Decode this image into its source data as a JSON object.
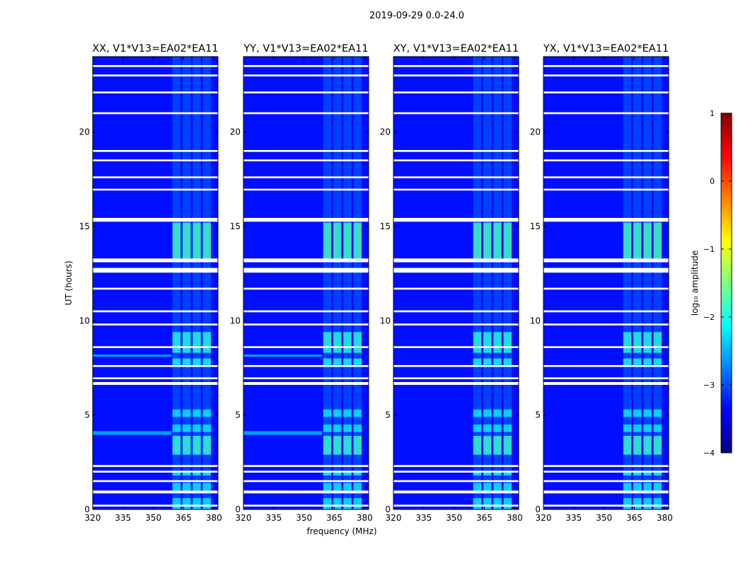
{
  "figure": {
    "suptitle": "2019-09-29 0.0-24.0",
    "xlabel": "frequency (MHz)",
    "ylabel": "UT (hours)"
  },
  "chart_data": {
    "type": "heatmap",
    "x": {
      "label": "frequency (MHz)",
      "range": [
        320,
        382
      ],
      "ticks": [
        320,
        335,
        350,
        365,
        380
      ]
    },
    "y": {
      "label": "UT (hours)",
      "range": [
        0,
        24
      ],
      "ticks": [
        0,
        5,
        10,
        15,
        20
      ]
    },
    "panels": [
      {
        "title": "XX, V1*V13=EA02*EA11",
        "show_ylabel": true
      },
      {
        "title": "YY, V1*V13=EA02*EA11",
        "show_ylabel": false
      },
      {
        "title": "XY, V1*V13=EA02*EA11",
        "show_ylabel": false
      },
      {
        "title": "YX, V1*V13=EA02*EA11",
        "show_ylabel": false
      }
    ],
    "background_log10_amplitude": -3.3,
    "bright_channels_MHz": [
      [
        359.5,
        363.5
      ],
      [
        364.5,
        368.5
      ],
      [
        369.5,
        373.5
      ],
      [
        374.5,
        378.5
      ]
    ],
    "bright_hours_log10_amplitude": [
      {
        "start": 0.0,
        "end": 0.6,
        "value": -2.2
      },
      {
        "start": 1.0,
        "end": 1.4,
        "value": -2.2
      },
      {
        "start": 1.8,
        "end": 2.0,
        "value": -2.1
      },
      {
        "start": 2.9,
        "end": 3.9,
        "value": -1.8
      },
      {
        "start": 4.1,
        "end": 4.5,
        "value": -2.2
      },
      {
        "start": 4.9,
        "end": 5.3,
        "value": -2.2
      },
      {
        "start": 7.6,
        "end": 8.0,
        "value": -2.0
      },
      {
        "start": 8.3,
        "end": 9.4,
        "value": -1.9
      },
      {
        "start": 13.2,
        "end": 15.2,
        "value": -1.7
      }
    ],
    "blank_hour_ranges": [
      [
        0.15,
        0.25
      ],
      [
        0.85,
        1.0
      ],
      [
        1.45,
        1.55
      ],
      [
        1.95,
        2.05
      ],
      [
        2.25,
        2.35
      ],
      [
        6.6,
        6.75
      ],
      [
        6.9,
        7.0
      ],
      [
        7.55,
        7.65
      ],
      [
        8.55,
        8.65
      ],
      [
        9.75,
        9.85
      ],
      [
        10.45,
        10.55
      ],
      [
        11.65,
        11.75
      ],
      [
        12.55,
        12.8
      ],
      [
        13.1,
        13.3
      ],
      [
        15.25,
        15.45
      ],
      [
        16.9,
        17.0
      ],
      [
        17.55,
        17.65
      ],
      [
        18.45,
        18.55
      ],
      [
        18.95,
        19.05
      ],
      [
        20.95,
        21.05
      ],
      [
        22.05,
        22.15
      ],
      [
        22.95,
        23.05
      ],
      [
        23.45,
        23.55
      ]
    ],
    "horizontal_stripes": [
      {
        "start": 3.95,
        "end": 4.15,
        "value": -2.6,
        "panels": [
          0,
          1
        ]
      },
      {
        "start": 8.1,
        "end": 8.2,
        "value": -2.5,
        "panels": [
          0,
          1
        ]
      }
    ]
  },
  "colorbar": {
    "label": "log₁₀ amplitude",
    "min": -4,
    "max": 1,
    "ticks": [
      1,
      0,
      -1,
      -2,
      -3,
      -4
    ],
    "tick_labels": [
      "1",
      "0",
      "−1",
      "−2",
      "−3",
      "−4"
    ],
    "colormap": [
      "#00007f",
      "#0000ff",
      "#007fff",
      "#00ffff",
      "#7fff7f",
      "#ffff00",
      "#ff7f00",
      "#ff0000",
      "#7f0000"
    ]
  }
}
